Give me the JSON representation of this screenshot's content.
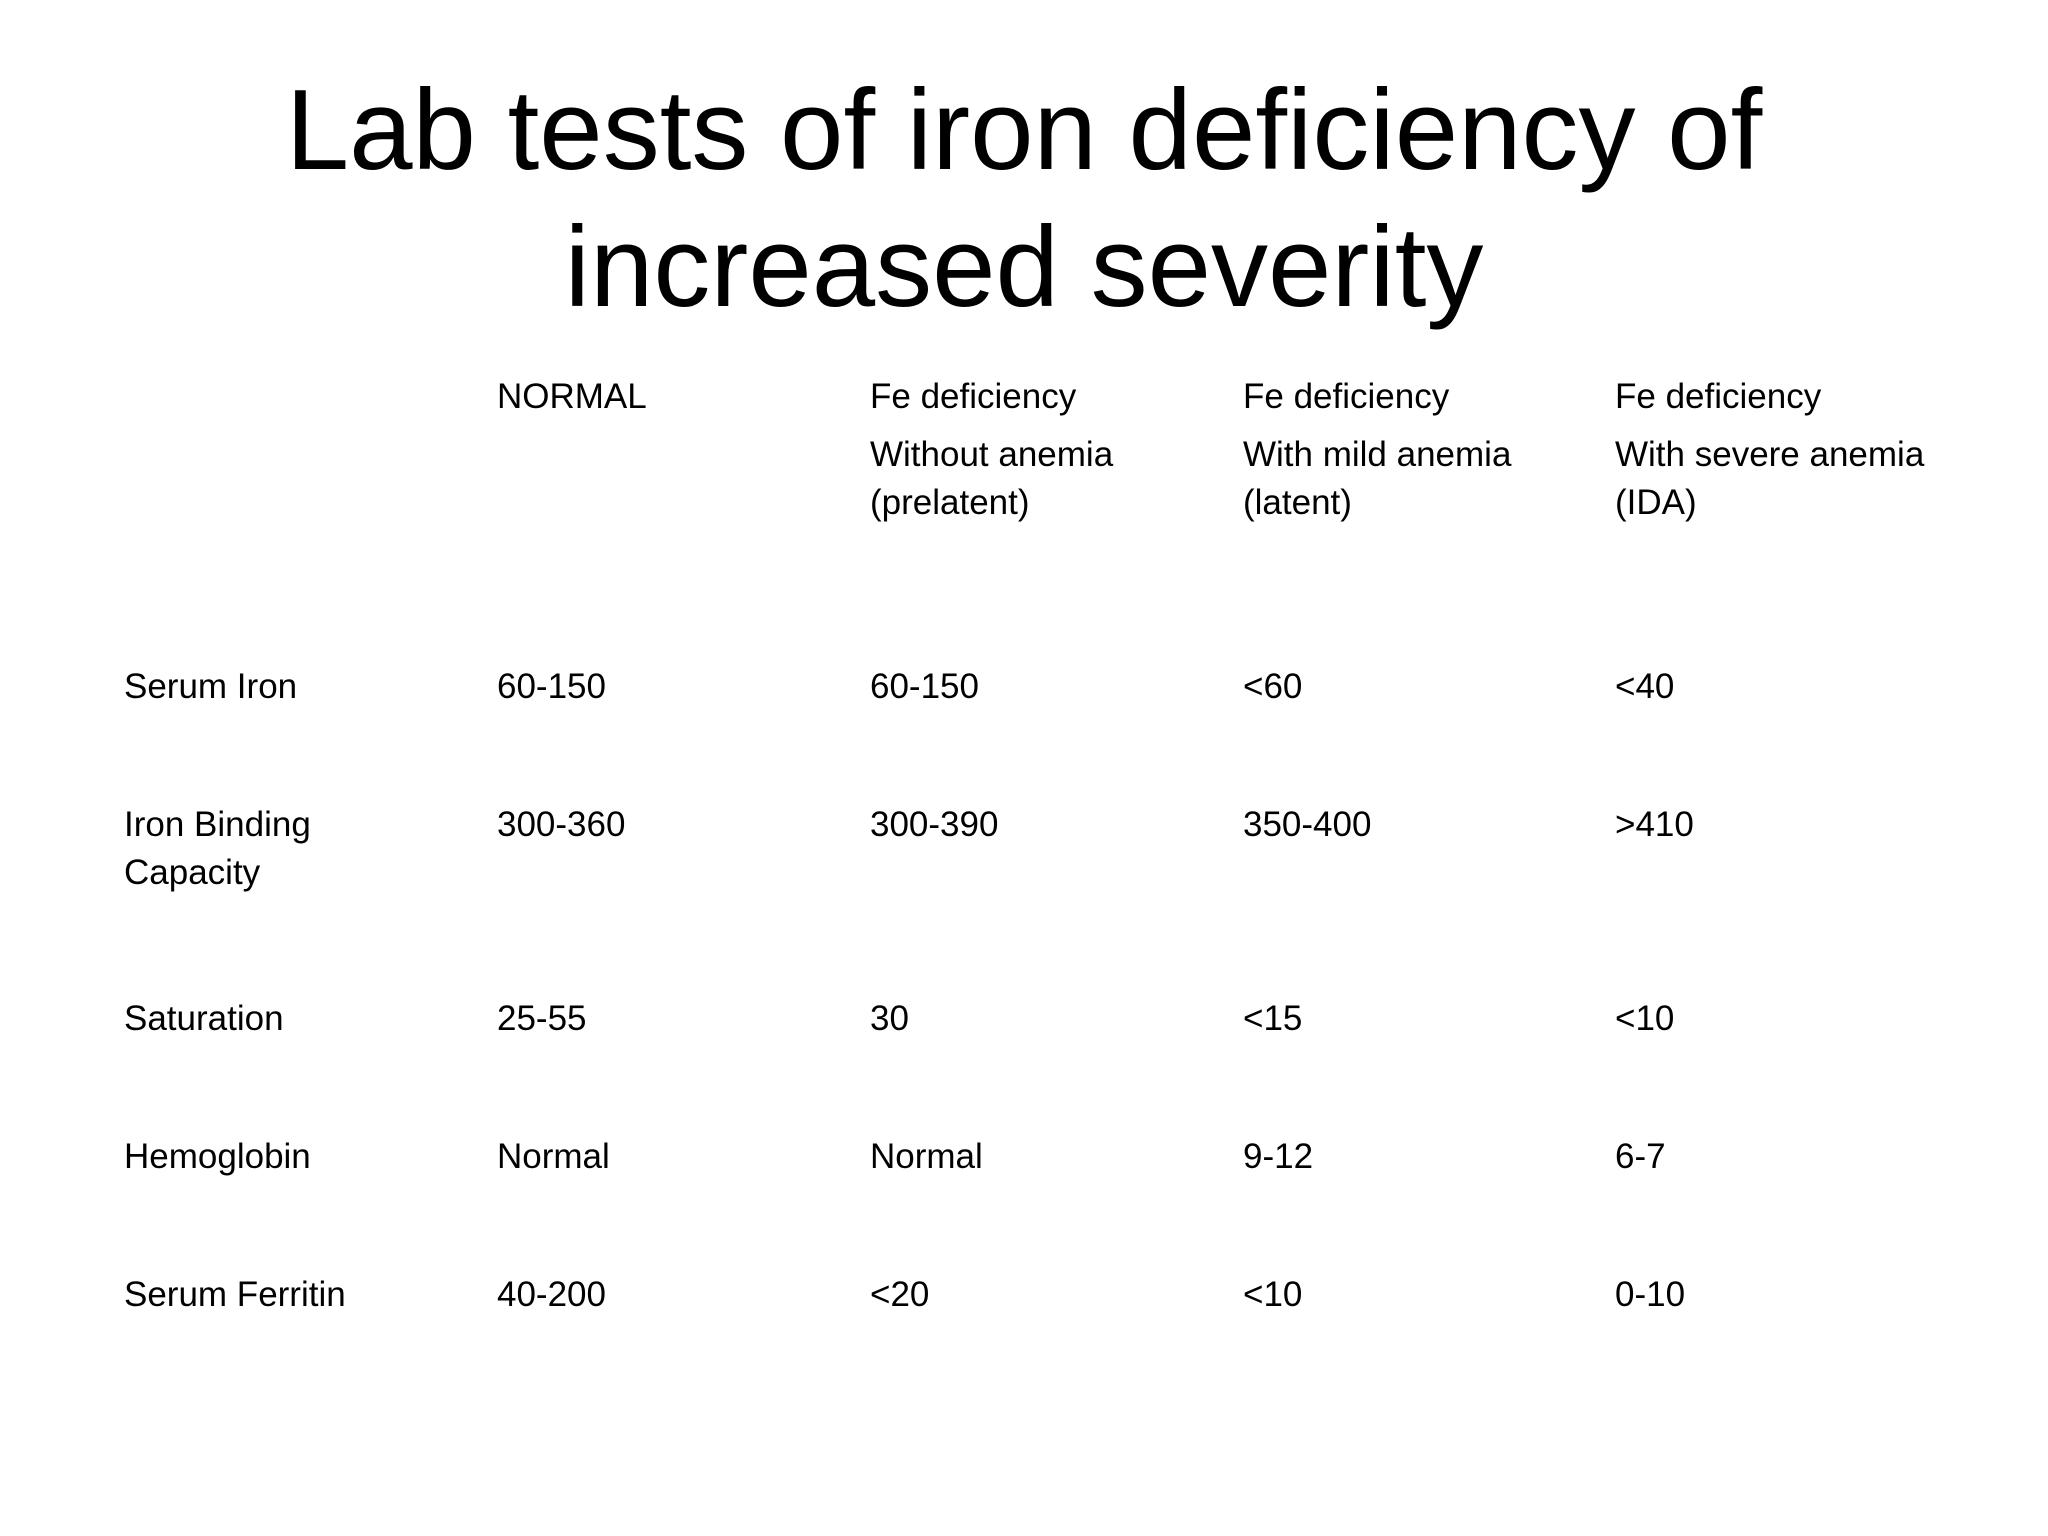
{
  "slide": {
    "title_line1": "Lab tests of iron deficiency of",
    "title_line2": "increased severity"
  },
  "table": {
    "columns": [
      {
        "line1": "NORMAL",
        "line2": "",
        "line3": ""
      },
      {
        "line1": "Fe deficiency",
        "line2": "Without anemia",
        "line3": "(prelatent)"
      },
      {
        "line1": "Fe deficiency",
        "line2": "With mild anemia",
        "line3": "(latent)"
      },
      {
        "line1": "Fe deficiency",
        "line2": "With severe anemia",
        "line3": "(IDA)"
      }
    ],
    "rows": [
      {
        "label_line1": "Serum  Iron",
        "label_line2": "",
        "values": [
          "60-150",
          "60-150",
          "<60",
          "<40"
        ]
      },
      {
        "label_line1": "Iron Binding",
        "label_line2": "Capacity",
        "values": [
          "300-360",
          "300-390",
          "350-400",
          ">410"
        ]
      },
      {
        "label_line1": "Saturation",
        "label_line2": "",
        "values": [
          "25-55",
          "30",
          "<15",
          "<10"
        ]
      },
      {
        "label_line1": "Hemoglobin",
        "label_line2": "",
        "values": [
          "Normal",
          "Normal",
          "9-12",
          "6-7"
        ]
      },
      {
        "label_line1": "Serum Ferritin",
        "label_line2": "",
        "values": [
          "40-200",
          "<20",
          "<10",
          "0-10"
        ]
      }
    ]
  }
}
